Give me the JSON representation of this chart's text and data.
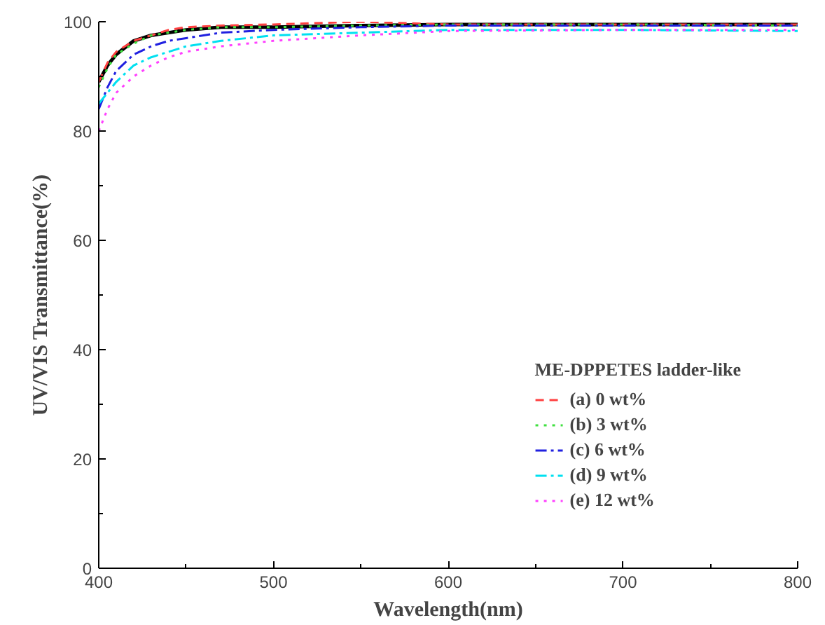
{
  "chart_data": {
    "type": "line",
    "xlabel": "Wavelength(nm)",
    "ylabel": "UV/VIS Transmittance(%)",
    "legend_title": "ME-DPPETES ladder-like",
    "x": [
      400,
      405,
      410,
      420,
      430,
      440,
      450,
      470,
      500,
      550,
      600,
      700,
      800
    ],
    "series": [
      {
        "color": "#000000",
        "line_style": "solid",
        "values": [
          89,
          92,
          94,
          96.5,
          97.5,
          98,
          98.5,
          99,
          99,
          99.3,
          99.5,
          99.5,
          99.5
        ]
      },
      {
        "name": "(a) 0 wt%",
        "color": "#ff4040",
        "line_style": "dashed",
        "values": [
          89,
          92.5,
          94.5,
          96.5,
          97.5,
          98.5,
          99,
          99.3,
          99.5,
          100,
          99.5,
          99.5,
          99.5
        ]
      },
      {
        "name": "(b) 3 wt%",
        "color": "#40e040",
        "line_style": "dotted",
        "values": [
          88,
          91.5,
          94,
          96,
          97.5,
          98,
          98.5,
          99,
          99,
          99.3,
          99.5,
          99.5,
          99.3
        ]
      },
      {
        "name": "(c) 6 wt%",
        "color": "#2020e0",
        "line_style": "dashdot",
        "values": [
          84,
          88,
          91,
          94,
          95.5,
          96.5,
          97,
          98,
          98.5,
          99,
          99.3,
          99.3,
          99.3
        ]
      },
      {
        "name": "(d) 9 wt%",
        "color": "#00e0f0",
        "line_style": "dashdot",
        "values": [
          85,
          87,
          89,
          92,
          93.5,
          94.5,
          95.5,
          96.5,
          97.5,
          98,
          98.5,
          98.5,
          98.3
        ]
      },
      {
        "name": "(e) 12 wt%",
        "color": "#ff40ff",
        "line_style": "dotted",
        "values": [
          80,
          84,
          87,
          90,
          92,
          93.5,
          94.5,
          95.5,
          96.5,
          97.5,
          98.3,
          98.5,
          98.5
        ]
      }
    ],
    "xlim": [
      400,
      800
    ],
    "xticks": [
      400,
      500,
      600,
      700,
      800
    ],
    "ylim": [
      0,
      100
    ],
    "yticks": [
      0,
      20,
      40,
      60,
      80,
      100
    ],
    "grid": false,
    "legend": "bottom right",
    "marker": "none"
  }
}
